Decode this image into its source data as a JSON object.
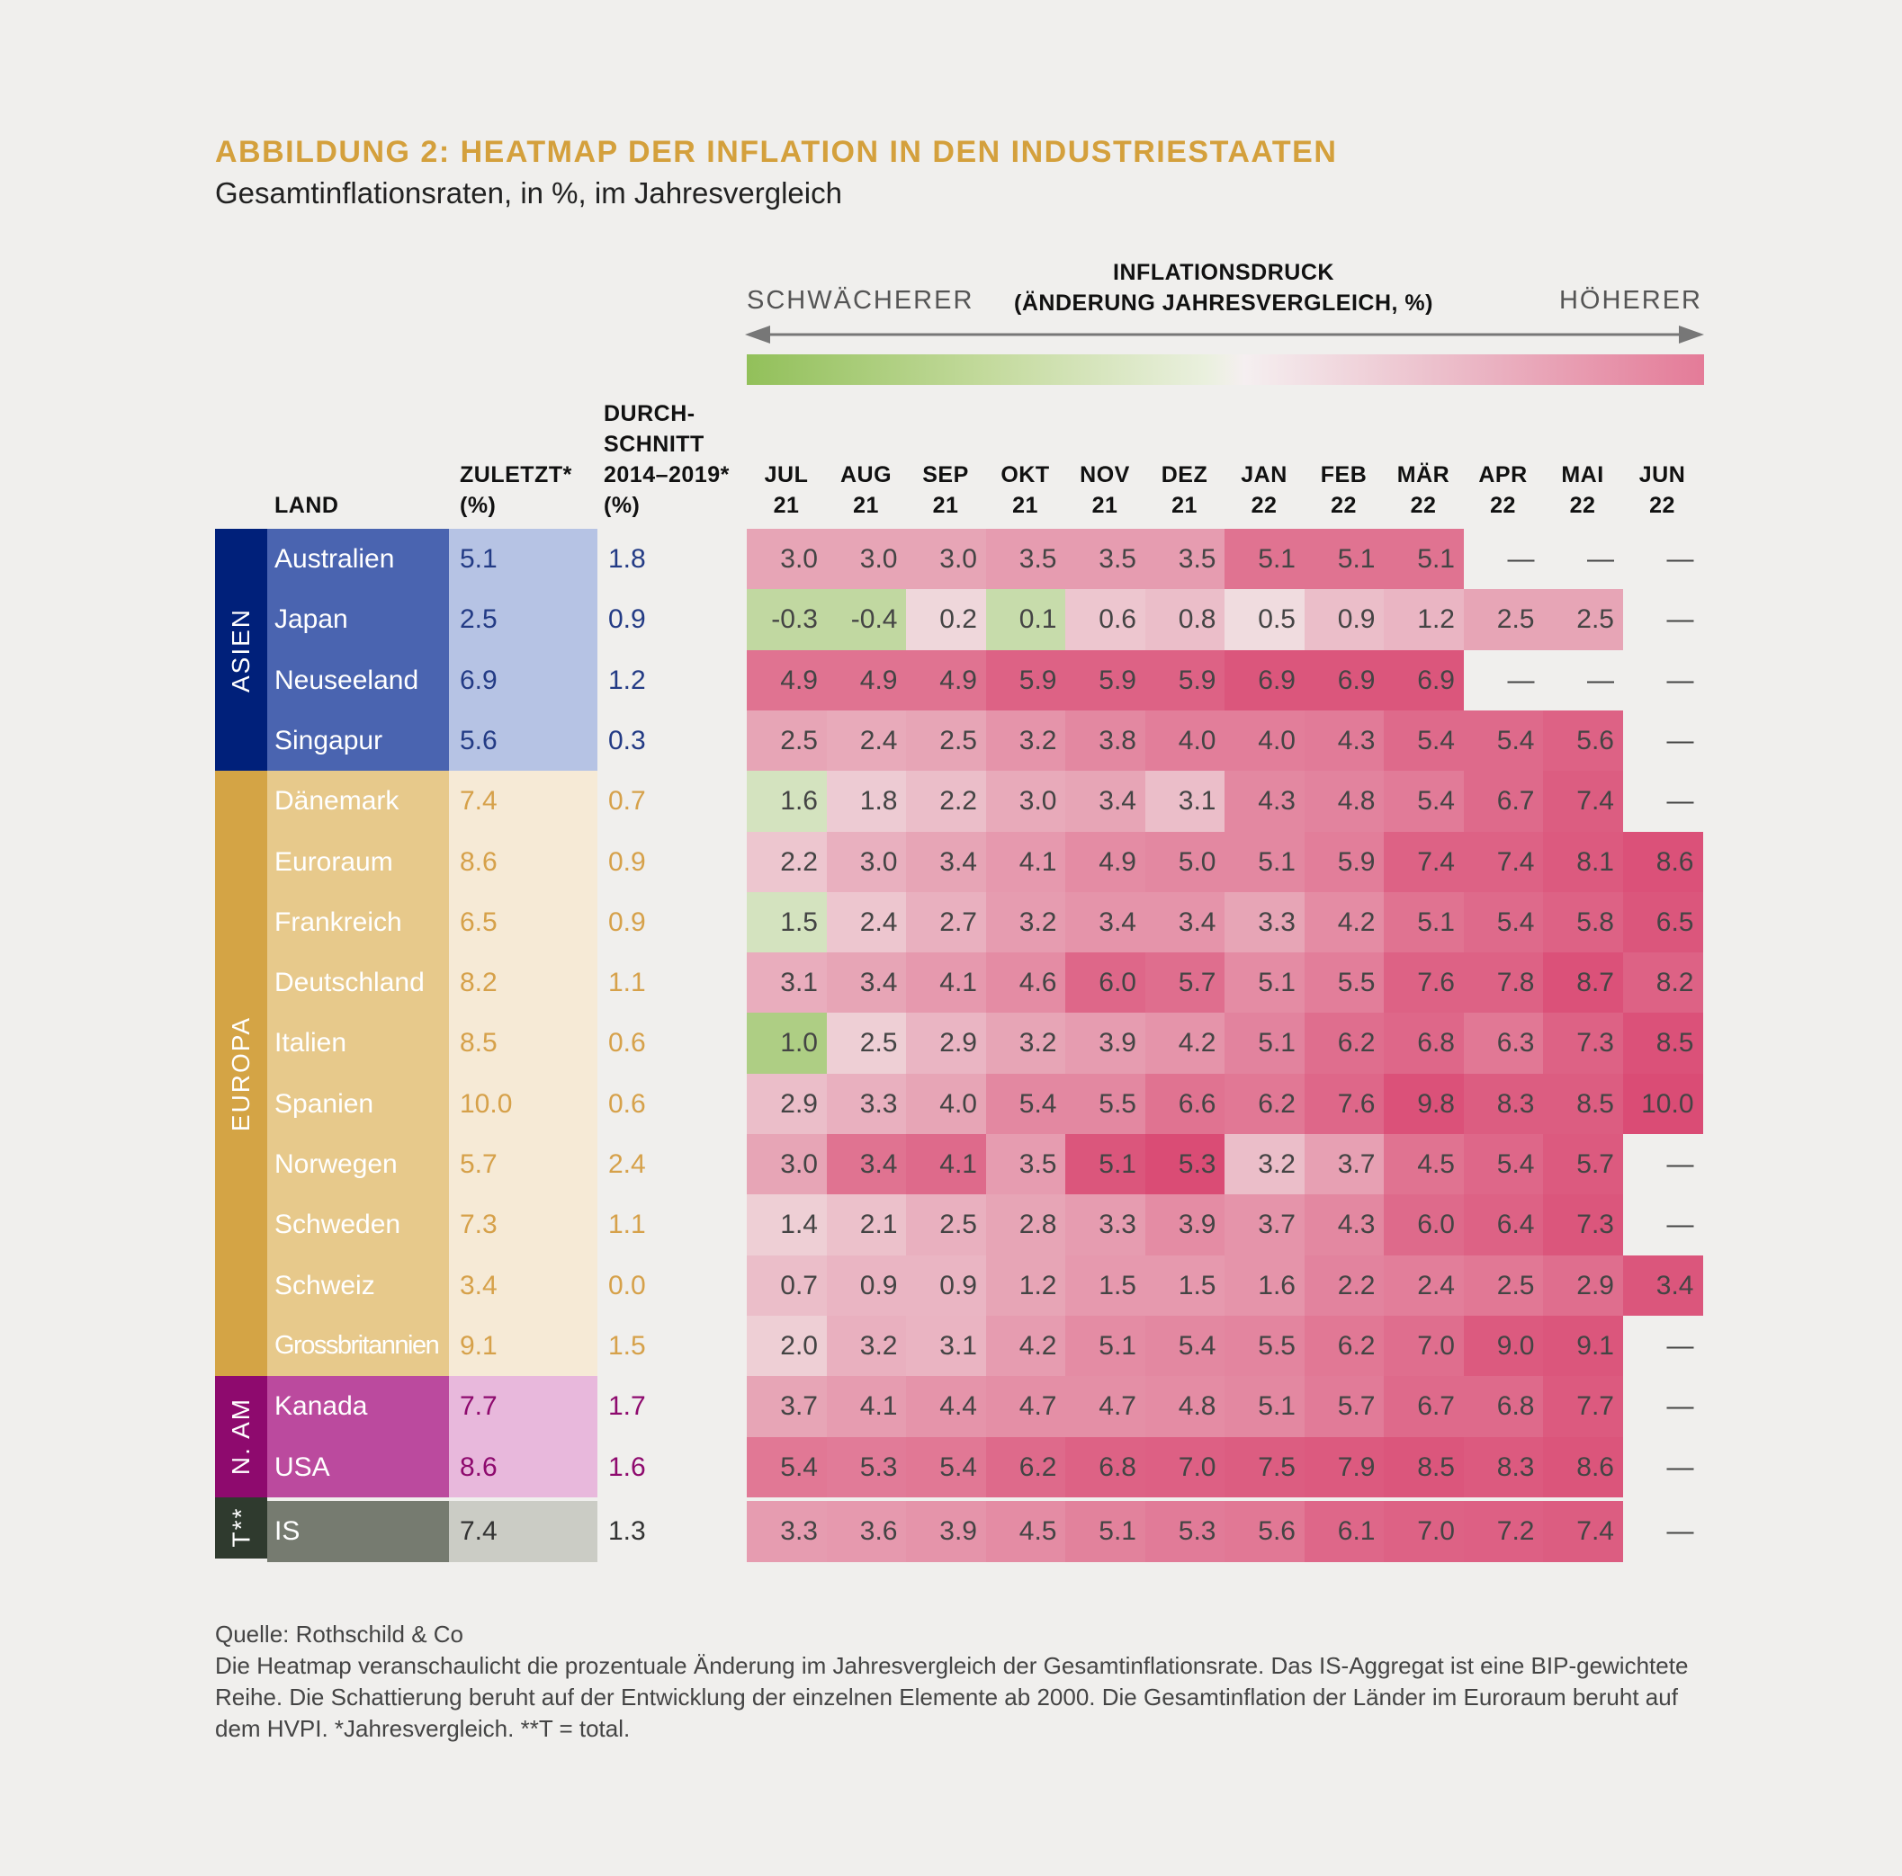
{
  "header": {
    "title": "ABBILDUNG 2: HEATMAP DER INFLATION IN DEN INDUSTRIESTAATEN",
    "subtitle": "Gesamtinflationsraten, in %, im Jahresvergleich"
  },
  "legend": {
    "title_line1": "INFLATIONSDRUCK",
    "title_line2": "(ÄNDERUNG JAHRESVERGLEICH, %)",
    "left_label": "SCHWÄCHERER",
    "right_label": "HÖHERER",
    "colors": {
      "low": "#92c05a",
      "mid": "#f3f0ee",
      "high": "#e47b98"
    }
  },
  "columns": {
    "land": "LAND",
    "latest_line1": "ZULETZT*",
    "latest_line2": "(%)",
    "avg_line1": "DURCH-",
    "avg_line2": "SCHNITT",
    "avg_line3": "2014–2019*",
    "avg_line4": "(%)"
  },
  "chart_data": {
    "type": "heatmap",
    "title": "ABBILDUNG 2: HEATMAP DER INFLATION IN DEN INDUSTRIESTAATEN",
    "subtitle": "Gesamtinflationsraten, in %, im Jahresvergleich",
    "months": [
      {
        "l1": "JUL",
        "l2": "21"
      },
      {
        "l1": "AUG",
        "l2": "21"
      },
      {
        "l1": "SEP",
        "l2": "21"
      },
      {
        "l1": "OKT",
        "l2": "21"
      },
      {
        "l1": "NOV",
        "l2": "21"
      },
      {
        "l1": "DEZ",
        "l2": "21"
      },
      {
        "l1": "JAN",
        "l2": "22"
      },
      {
        "l1": "FEB",
        "l2": "22"
      },
      {
        "l1": "MÄR",
        "l2": "22"
      },
      {
        "l1": "APR",
        "l2": "22"
      },
      {
        "l1": "MAI",
        "l2": "22"
      },
      {
        "l1": "JUN",
        "l2": "22"
      }
    ],
    "regions": [
      {
        "name": "ASIEN",
        "color": "#00207a",
        "country_bg": "#4a64b0",
        "panel_bg": "#b6c3e4",
        "text_color": "#233b85",
        "rows": 4
      },
      {
        "name": "EUROPA",
        "color": "#d4a445",
        "country_bg": "#e7c98b",
        "panel_bg": "#f6ead6",
        "text_color": "#d6a14a",
        "rows": 10
      },
      {
        "name": "N. AM",
        "color": "#8e0a6e",
        "country_bg": "#bb4a9e",
        "panel_bg": "#e8b8dc",
        "text_color": "#8e0a6e",
        "rows": 2
      },
      {
        "name": "T**",
        "color": "#2f3a2e",
        "country_bg": "#767b70",
        "panel_bg": "#cbccc5",
        "text_color": "#333",
        "rows": 1
      }
    ],
    "rows": [
      {
        "country": "Australien",
        "latest": "5.1",
        "avg": "1.8",
        "values": [
          "3.0",
          "3.0",
          "3.0",
          "3.5",
          "3.5",
          "3.5",
          "5.1",
          "5.1",
          "5.1",
          "—",
          "—",
          "—"
        ],
        "shade": [
          0.45,
          0.45,
          0.45,
          0.5,
          0.5,
          0.5,
          0.75,
          0.75,
          0.75,
          null,
          null,
          null
        ]
      },
      {
        "country": "Japan",
        "latest": "2.5",
        "avg": "0.9",
        "values": [
          "-0.3",
          "-0.4",
          "0.2",
          "0.1",
          "0.6",
          "0.8",
          "0.5",
          "0.9",
          "1.2",
          "2.5",
          "2.5",
          "—"
        ],
        "shade": [
          -0.35,
          -0.35,
          0.15,
          -0.3,
          0.25,
          0.3,
          0.12,
          0.3,
          0.35,
          0.45,
          0.45,
          null
        ]
      },
      {
        "country": "Neuseeland",
        "latest": "6.9",
        "avg": "1.2",
        "values": [
          "4.9",
          "4.9",
          "4.9",
          "5.9",
          "5.9",
          "5.9",
          "6.9",
          "6.9",
          "6.9",
          "—",
          "—",
          "—"
        ],
        "shade": [
          0.75,
          0.75,
          0.75,
          0.85,
          0.85,
          0.85,
          0.92,
          0.92,
          0.92,
          null,
          null,
          null
        ]
      },
      {
        "country": "Singapur",
        "latest": "5.6",
        "avg": "0.3",
        "values": [
          "2.5",
          "2.4",
          "2.5",
          "3.2",
          "3.8",
          "4.0",
          "4.0",
          "4.3",
          "5.4",
          "5.4",
          "5.6",
          "—"
        ],
        "shade": [
          0.45,
          0.42,
          0.45,
          0.55,
          0.62,
          0.68,
          0.68,
          0.7,
          0.8,
          0.8,
          0.85,
          null
        ]
      },
      {
        "country": "Dänemark",
        "latest": "7.4",
        "avg": "0.7",
        "values": [
          "1.6",
          "1.8",
          "2.2",
          "3.0",
          "3.4",
          "3.1",
          "4.3",
          "4.8",
          "5.4",
          "6.7",
          "7.4",
          "—"
        ],
        "shade": [
          -0.2,
          0.22,
          0.3,
          0.42,
          0.45,
          0.3,
          0.62,
          0.65,
          0.7,
          0.8,
          0.88,
          null
        ]
      },
      {
        "country": "Euroraum",
        "latest": "8.6",
        "avg": "0.9",
        "values": [
          "2.2",
          "3.0",
          "3.4",
          "4.1",
          "4.9",
          "5.0",
          "5.1",
          "5.9",
          "7.4",
          "7.4",
          "8.1",
          "8.6"
        ],
        "shade": [
          0.25,
          0.38,
          0.45,
          0.52,
          0.6,
          0.62,
          0.62,
          0.68,
          0.85,
          0.85,
          0.9,
          0.95
        ]
      },
      {
        "country": "Frankreich",
        "latest": "6.5",
        "avg": "0.9",
        "values": [
          "1.5",
          "2.4",
          "2.7",
          "3.2",
          "3.4",
          "3.4",
          "3.3",
          "4.2",
          "5.1",
          "5.4",
          "5.8",
          "6.5"
        ],
        "shade": [
          -0.2,
          0.25,
          0.38,
          0.5,
          0.55,
          0.55,
          0.45,
          0.6,
          0.75,
          0.8,
          0.85,
          0.92
        ]
      },
      {
        "country": "Deutschland",
        "latest": "8.2",
        "avg": "1.1",
        "values": [
          "3.1",
          "3.4",
          "4.1",
          "4.6",
          "6.0",
          "5.7",
          "5.1",
          "5.5",
          "7.6",
          "7.8",
          "8.7",
          "8.2"
        ],
        "shade": [
          0.4,
          0.45,
          0.52,
          0.6,
          0.82,
          0.78,
          0.6,
          0.68,
          0.85,
          0.85,
          0.95,
          0.85
        ]
      },
      {
        "country": "Italien",
        "latest": "8.5",
        "avg": "0.6",
        "values": [
          "1.0",
          "2.5",
          "2.9",
          "3.2",
          "3.9",
          "4.2",
          "5.1",
          "6.2",
          "6.8",
          "6.3",
          "7.3",
          "8.5"
        ],
        "shade": [
          -0.5,
          0.2,
          0.35,
          0.45,
          0.5,
          0.55,
          0.65,
          0.78,
          0.82,
          0.72,
          0.85,
          0.95
        ]
      },
      {
        "country": "Spanien",
        "latest": "10.0",
        "avg": "0.6",
        "values": [
          "2.9",
          "3.3",
          "4.0",
          "5.4",
          "5.5",
          "6.6",
          "6.2",
          "7.6",
          "9.8",
          "8.3",
          "8.5",
          "10.0"
        ],
        "shade": [
          0.3,
          0.38,
          0.45,
          0.62,
          0.62,
          0.75,
          0.72,
          0.82,
          0.95,
          0.88,
          0.88,
          0.98
        ]
      },
      {
        "country": "Norwegen",
        "latest": "5.7",
        "avg": "2.4",
        "values": [
          "3.0",
          "3.4",
          "4.1",
          "3.5",
          "5.1",
          "5.3",
          "3.2",
          "3.7",
          "4.5",
          "5.4",
          "5.7",
          "—"
        ],
        "shade": [
          0.45,
          0.75,
          0.8,
          0.5,
          0.92,
          0.98,
          0.3,
          0.48,
          0.75,
          0.82,
          0.9,
          null
        ]
      },
      {
        "country": "Schweden",
        "latest": "7.3",
        "avg": "1.1",
        "values": [
          "1.4",
          "2.1",
          "2.5",
          "2.8",
          "3.3",
          "3.9",
          "3.7",
          "4.3",
          "6.0",
          "6.4",
          "7.3",
          "—"
        ],
        "shade": [
          0.2,
          0.28,
          0.38,
          0.45,
          0.5,
          0.6,
          0.55,
          0.62,
          0.8,
          0.85,
          0.92,
          null
        ]
      },
      {
        "country": "Schweiz",
        "latest": "3.4",
        "avg": "0.0",
        "values": [
          "0.7",
          "0.9",
          "0.9",
          "1.2",
          "1.5",
          "1.5",
          "1.6",
          "2.2",
          "2.4",
          "2.5",
          "2.9",
          "3.4"
        ],
        "shade": [
          0.3,
          0.35,
          0.35,
          0.45,
          0.52,
          0.52,
          0.55,
          0.65,
          0.68,
          0.72,
          0.78,
          0.92
        ]
      },
      {
        "country": "Grossbritannien",
        "latest": "9.1",
        "avg": "1.5",
        "values": [
          "2.0",
          "3.2",
          "3.1",
          "4.2",
          "5.1",
          "5.4",
          "5.5",
          "6.2",
          "7.0",
          "9.0",
          "9.1",
          "—"
        ],
        "shade": [
          0.2,
          0.38,
          0.36,
          0.5,
          0.6,
          0.62,
          0.64,
          0.72,
          0.78,
          0.9,
          0.92,
          null
        ]
      },
      {
        "country": "Kanada",
        "latest": "7.7",
        "avg": "1.7",
        "values": [
          "3.7",
          "4.1",
          "4.4",
          "4.7",
          "4.7",
          "4.8",
          "5.1",
          "5.7",
          "6.7",
          "6.8",
          "7.7",
          "—"
        ],
        "shade": [
          0.45,
          0.5,
          0.55,
          0.58,
          0.58,
          0.6,
          0.62,
          0.7,
          0.8,
          0.8,
          0.9,
          null
        ]
      },
      {
        "country": "USA",
        "latest": "8.6",
        "avg": "1.6",
        "values": [
          "5.4",
          "5.3",
          "5.4",
          "6.2",
          "6.8",
          "7.0",
          "7.5",
          "7.9",
          "8.5",
          "8.3",
          "8.6",
          "—"
        ],
        "shade": [
          0.72,
          0.7,
          0.72,
          0.8,
          0.85,
          0.86,
          0.88,
          0.9,
          0.92,
          0.9,
          0.93,
          null
        ]
      },
      {
        "country": "IS",
        "latest": "7.4",
        "avg": "1.3",
        "values": [
          "3.3",
          "3.6",
          "3.9",
          "4.5",
          "5.1",
          "5.3",
          "5.6",
          "6.1",
          "7.0",
          "7.2",
          "7.4",
          "—"
        ],
        "shade": [
          0.5,
          0.52,
          0.55,
          0.6,
          0.66,
          0.7,
          0.72,
          0.82,
          0.85,
          0.86,
          0.88,
          null
        ]
      }
    ]
  },
  "footer": {
    "source": "Quelle: Rothschild & Co",
    "note": "Die Heatmap veranschaulicht die prozentuale Änderung im Jahresvergleich der Gesamtinflationsrate. Das IS-Aggregat ist eine BIP-gewichtete Reihe. Die Schattierung beruht auf der Entwicklung der einzelnen Elemente ab 2000. Die Gesamtinflation der Länder im Euroraum beruht auf dem HVPI. *Jahresvergleich. **T = total."
  }
}
